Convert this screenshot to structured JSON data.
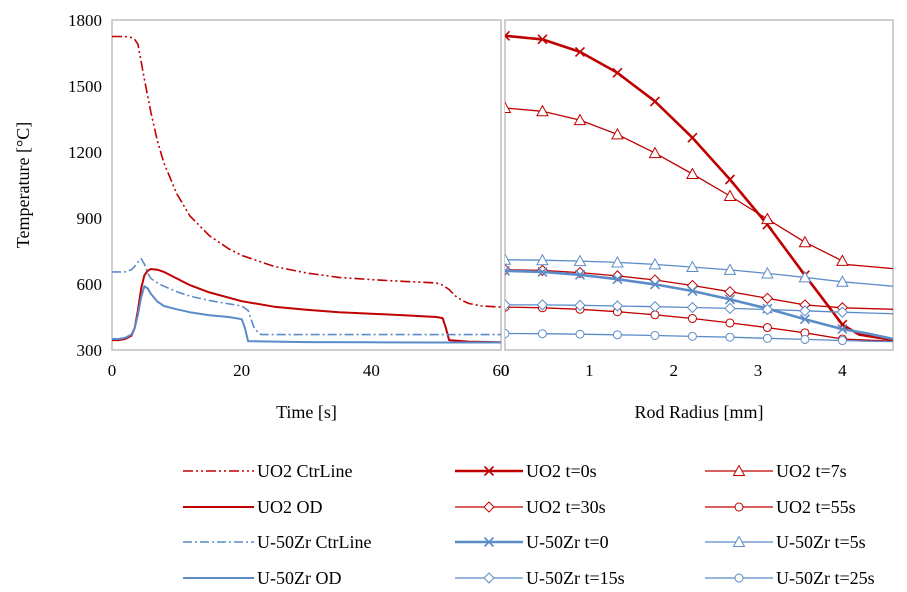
{
  "chart_data": [
    {
      "type": "line",
      "xlabel": "Time [s]",
      "ylabel": "Temperature [°C]",
      "xlim": [
        0,
        60
      ],
      "ylim": [
        300,
        1800
      ],
      "xticks": [
        "0",
        "20",
        "40",
        "60"
      ],
      "yticks": [
        "300",
        "600",
        "900",
        "1200",
        "1500",
        "1800"
      ],
      "grid": false,
      "legend": "bottom",
      "series": [
        {
          "name": "UO2 CtrLine",
          "color": "#c00000",
          "dash": "dashdotdot",
          "x": [
            0,
            2,
            3,
            3.5,
            4,
            5,
            6,
            7,
            8,
            10,
            12,
            15,
            18,
            20,
            25,
            30,
            35,
            40,
            45,
            50,
            51,
            52,
            53,
            54,
            55,
            57,
            60
          ],
          "y": [
            1725,
            1725,
            1720,
            1712,
            1690,
            1530,
            1380,
            1250,
            1150,
            1010,
            910,
            820,
            760,
            730,
            680,
            650,
            630,
            620,
            612,
            605,
            595,
            575,
            545,
            525,
            512,
            500,
            495
          ]
        },
        {
          "name": "UO2 OD",
          "color": "#c00000",
          "dash": "solid",
          "x": [
            0,
            1,
            2,
            3,
            3.5,
            4,
            4.5,
            5,
            5.5,
            6,
            7,
            8,
            10,
            12,
            15,
            20,
            25,
            30,
            35,
            40,
            45,
            50,
            51,
            51.5,
            52,
            55,
            60
          ],
          "y": [
            345,
            345,
            350,
            365,
            400,
            480,
            580,
            640,
            660,
            668,
            665,
            655,
            625,
            595,
            562,
            522,
            497,
            483,
            472,
            465,
            458,
            450,
            445,
            400,
            345,
            338,
            335
          ]
        },
        {
          "name": "U-50Zr CtrLine",
          "color": "#5b8cc8",
          "dash": "dashdot",
          "x": [
            0,
            2,
            3,
            3.5,
            4,
            4.5,
            5,
            5.5,
            6,
            7,
            8,
            10,
            12,
            15,
            18,
            20,
            21,
            22,
            23,
            30,
            40,
            50,
            60
          ],
          "y": [
            655,
            655,
            665,
            680,
            700,
            715,
            690,
            650,
            625,
            605,
            590,
            565,
            545,
            525,
            510,
            500,
            480,
            395,
            370,
            370,
            370,
            370,
            370
          ]
        },
        {
          "name": "U-50Zr OD",
          "color": "#5b8cc8",
          "dash": "solid",
          "x": [
            0,
            1,
            2,
            3,
            3.5,
            4,
            4.5,
            5,
            5.5,
            6,
            7,
            8,
            10,
            12,
            15,
            18,
            20,
            20.5,
            21,
            25,
            30,
            40,
            50,
            60
          ],
          "y": [
            350,
            350,
            355,
            370,
            400,
            460,
            540,
            590,
            580,
            555,
            520,
            500,
            485,
            472,
            458,
            450,
            440,
            400,
            340,
            338,
            336,
            335,
            334,
            334
          ]
        }
      ]
    },
    {
      "type": "line",
      "xlabel": "Rod Radius [mm]",
      "xlim": [
        0,
        4.6
      ],
      "ylim": [
        300,
        1800
      ],
      "xticks": [
        "0",
        "1",
        "2",
        "3",
        "4"
      ],
      "grid": false,
      "legend": "bottom",
      "series": [
        {
          "name": "UO2 t=0s",
          "color": "#c00000",
          "marker": "x",
          "thick": true,
          "x": [
            0,
            0.444,
            0.889,
            1.333,
            1.778,
            2.222,
            2.667,
            3.111,
            3.556,
            4.0,
            4.2,
            4.6
          ],
          "y": [
            1728,
            1712,
            1655,
            1560,
            1430,
            1265,
            1075,
            870,
            640,
            415,
            370,
            345
          ]
        },
        {
          "name": "UO2 t=7s",
          "color": "#c00000",
          "marker": "triangle",
          "x": [
            0,
            0.444,
            0.889,
            1.333,
            1.778,
            2.222,
            2.667,
            3.111,
            3.556,
            4.0,
            4.0,
            4.3,
            4.6
          ],
          "y": [
            1400,
            1385,
            1345,
            1280,
            1195,
            1100,
            1000,
            895,
            790,
            705,
            690,
            680,
            670
          ]
        },
        {
          "name": "UO2 t=30s",
          "color": "#c00000",
          "marker": "diamond",
          "x": [
            0,
            0.444,
            0.889,
            1.333,
            1.778,
            2.222,
            2.667,
            3.111,
            3.556,
            4.0,
            4.6
          ],
          "y": [
            665,
            662,
            652,
            637,
            618,
            593,
            565,
            535,
            505,
            492,
            485
          ]
        },
        {
          "name": "UO2 t=55s",
          "color": "#c00000",
          "marker": "circle",
          "x": [
            0,
            0.444,
            0.889,
            1.333,
            1.778,
            2.222,
            2.667,
            3.111,
            3.556,
            4.0,
            4.6
          ],
          "y": [
            495,
            492,
            485,
            474,
            460,
            443,
            423,
            402,
            378,
            350,
            340
          ]
        },
        {
          "name": "U-50Zr t=0",
          "color": "#5b8cc8",
          "marker": "x",
          "thick": true,
          "x": [
            0,
            0.444,
            0.889,
            1.333,
            1.778,
            2.222,
            2.667,
            3.111,
            3.556,
            4.0,
            4.3,
            4.6
          ],
          "y": [
            660,
            655,
            642,
            622,
            598,
            568,
            530,
            488,
            440,
            395,
            375,
            350
          ]
        },
        {
          "name": "U-50Zr t=5s",
          "color": "#5b8cc8",
          "marker": "triangle",
          "x": [
            0,
            0.444,
            0.889,
            1.333,
            1.778,
            2.222,
            2.667,
            3.111,
            3.556,
            4.0,
            4.3,
            4.6
          ],
          "y": [
            710,
            708,
            704,
            698,
            689,
            677,
            664,
            648,
            630,
            610,
            600,
            590
          ]
        },
        {
          "name": "U-50Zr t=15s",
          "color": "#5b8cc8",
          "marker": "diamond",
          "x": [
            0,
            0.444,
            0.889,
            1.333,
            1.778,
            2.222,
            2.667,
            3.111,
            3.556,
            4.0,
            4.3,
            4.6
          ],
          "y": [
            505,
            505,
            503,
            500,
            497,
            493,
            489,
            484,
            478,
            472,
            468,
            465
          ]
        },
        {
          "name": "U-50Zr t=25s",
          "color": "#5b8cc8",
          "marker": "circle",
          "x": [
            0,
            0.444,
            0.889,
            1.333,
            1.778,
            2.222,
            2.667,
            3.111,
            3.556,
            4.0,
            4.3,
            4.6
          ],
          "y": [
            375,
            374,
            372,
            369,
            366,
            362,
            358,
            353,
            348,
            343,
            340,
            338
          ]
        }
      ]
    }
  ]
}
